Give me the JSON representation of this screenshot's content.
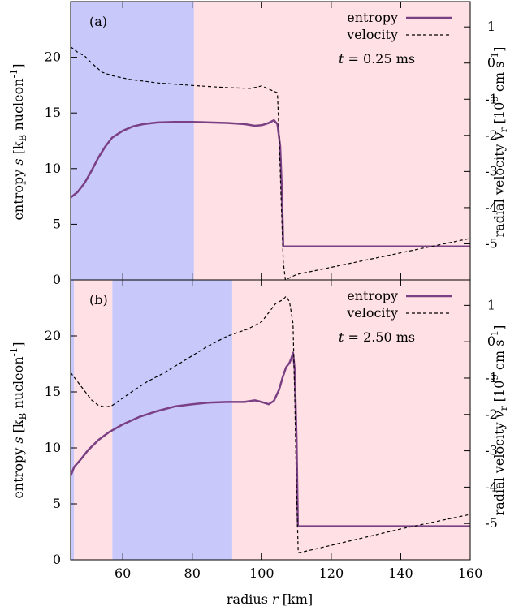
{
  "chart_data": [
    {
      "type": "line",
      "panel_label": "(a)",
      "time_label": "t = 0.25 ms",
      "time_label_parts": {
        "var": "t",
        "value": " = 0.25 ms"
      },
      "xlim": [
        45,
        160
      ],
      "ylim_left": [
        0,
        25
      ],
      "ylim_right": [
        -6,
        1.7
      ],
      "background_regions": [
        {
          "x0": 45,
          "x1": 80.5,
          "color": "#c8c8fa"
        },
        {
          "x0": 80.5,
          "x1": 160,
          "color": "#ffe0e4"
        }
      ],
      "series": [
        {
          "name": "entropy",
          "axis": "left",
          "color": "#7b3f84",
          "style": "solid",
          "points": [
            [
              45,
              7.4
            ],
            [
              47,
              7.9
            ],
            [
              49,
              8.7
            ],
            [
              51,
              9.8
            ],
            [
              53,
              11.0
            ],
            [
              55,
              12.0
            ],
            [
              57,
              12.8
            ],
            [
              60,
              13.4
            ],
            [
              63,
              13.8
            ],
            [
              66,
              14.0
            ],
            [
              70,
              14.15
            ],
            [
              75,
              14.2
            ],
            [
              80,
              14.2
            ],
            [
              85,
              14.15
            ],
            [
              90,
              14.1
            ],
            [
              95,
              14.0
            ],
            [
              98,
              13.85
            ],
            [
              100,
              13.9
            ],
            [
              102,
              14.1
            ],
            [
              103.5,
              14.35
            ],
            [
              104.5,
              14.0
            ],
            [
              105.3,
              12.0
            ],
            [
              105.8,
              8.0
            ],
            [
              106.2,
              3.0
            ],
            [
              110,
              3.0
            ],
            [
              130,
              3.0
            ],
            [
              160,
              3.0
            ]
          ]
        },
        {
          "name": "velocity",
          "axis": "right",
          "color": "#000000",
          "style": "dashed",
          "points": [
            [
              45,
              0.45
            ],
            [
              47,
              0.3
            ],
            [
              49,
              0.2
            ],
            [
              51,
              0.0
            ],
            [
              54,
              -0.25
            ],
            [
              57,
              -0.35
            ],
            [
              62,
              -0.45
            ],
            [
              70,
              -0.55
            ],
            [
              80,
              -0.62
            ],
            [
              90,
              -0.68
            ],
            [
              97,
              -0.7
            ],
            [
              100,
              -0.63
            ],
            [
              102,
              -0.72
            ],
            [
              104.5,
              -0.82
            ],
            [
              105,
              -2.0
            ],
            [
              105.5,
              -3.5
            ],
            [
              106.2,
              -5.5
            ],
            [
              106.8,
              -6.0
            ],
            [
              110,
              -5.85
            ],
            [
              130,
              -5.45
            ],
            [
              150,
              -5.05
            ],
            [
              160,
              -4.85
            ]
          ]
        }
      ]
    },
    {
      "type": "line",
      "panel_label": "(b)",
      "time_label": "t = 2.50 ms",
      "time_label_parts": {
        "var": "t",
        "value": " = 2.50 ms"
      },
      "xlim": [
        45,
        160
      ],
      "ylim_left": [
        0,
        25
      ],
      "ylim_right": [
        -6,
        1.7
      ],
      "background_regions": [
        {
          "x0": 45,
          "x1": 46,
          "color": "#c8c8fa"
        },
        {
          "x0": 46,
          "x1": 57,
          "color": "#ffe0e4"
        },
        {
          "x0": 57,
          "x1": 91.5,
          "color": "#c8c8fa"
        },
        {
          "x0": 91.5,
          "x1": 160,
          "color": "#ffe0e4"
        }
      ],
      "series": [
        {
          "name": "entropy",
          "axis": "left",
          "color": "#7b3f84",
          "style": "solid",
          "points": [
            [
              45,
              7.5
            ],
            [
              46,
              8.3
            ],
            [
              48,
              9.0
            ],
            [
              50,
              9.8
            ],
            [
              53,
              10.7
            ],
            [
              56,
              11.4
            ],
            [
              60,
              12.1
            ],
            [
              65,
              12.8
            ],
            [
              70,
              13.3
            ],
            [
              75,
              13.7
            ],
            [
              80,
              13.9
            ],
            [
              85,
              14.05
            ],
            [
              90,
              14.1
            ],
            [
              95,
              14.1
            ],
            [
              98,
              14.25
            ],
            [
              100,
              14.1
            ],
            [
              102,
              13.9
            ],
            [
              103.5,
              14.2
            ],
            [
              105,
              15.2
            ],
            [
              106,
              16.3
            ],
            [
              107,
              17.2
            ],
            [
              108,
              17.6
            ],
            [
              108.5,
              18.0
            ],
            [
              109,
              18.5
            ],
            [
              109.5,
              17.0
            ],
            [
              110,
              11.0
            ],
            [
              110.4,
              3.0
            ],
            [
              120,
              3.0
            ],
            [
              140,
              3.0
            ],
            [
              160,
              3.0
            ]
          ]
        },
        {
          "name": "velocity",
          "axis": "right",
          "color": "#000000",
          "style": "dashed",
          "points": [
            [
              45,
              -0.85
            ],
            [
              47,
              -1.1
            ],
            [
              49,
              -1.35
            ],
            [
              51,
              -1.6
            ],
            [
              53,
              -1.75
            ],
            [
              55,
              -1.8
            ],
            [
              57,
              -1.75
            ],
            [
              60,
              -1.55
            ],
            [
              63,
              -1.35
            ],
            [
              67,
              -1.1
            ],
            [
              72,
              -0.85
            ],
            [
              78,
              -0.5
            ],
            [
              84,
              -0.15
            ],
            [
              90,
              0.15
            ],
            [
              96,
              0.35
            ],
            [
              100,
              0.55
            ],
            [
              102,
              0.8
            ],
            [
              104,
              1.05
            ],
            [
              106,
              1.15
            ],
            [
              107,
              1.25
            ],
            [
              108,
              1.1
            ],
            [
              109,
              0.5
            ],
            [
              109.5,
              -1.5
            ],
            [
              110,
              -4.0
            ],
            [
              110.5,
              -5.8
            ],
            [
              111,
              -5.8
            ],
            [
              120,
              -5.6
            ],
            [
              140,
              -5.15
            ],
            [
              160,
              -4.75
            ]
          ]
        }
      ]
    }
  ],
  "axes": {
    "xlabel": "radius r [km]",
    "xlabel_parts": {
      "prefix": "radius ",
      "var": "r",
      "suffix": " [km]"
    },
    "x_ticks": [
      60,
      80,
      100,
      120,
      140,
      160
    ],
    "left_ticks": [
      0,
      5,
      10,
      15,
      20
    ],
    "right_ticks": [
      -5,
      -4,
      -3,
      -2,
      -1,
      0,
      1
    ],
    "ylabel_left": "entropy s [kB nucleon-1]",
    "ylabel_left_parts": {
      "prefix": "entropy ",
      "var": "s",
      "mid": " [k",
      "sub": "B",
      "mid2": " nucleon",
      "sup": "-1",
      "suffix": "]"
    },
    "ylabel_right": "radial velocity vr [10^9 cm s-1]",
    "ylabel_right_parts": {
      "prefix": "radial velocity ",
      "var": "v",
      "sub": "r",
      "mid": " [10",
      "sup": "9",
      "mid2": " cm s",
      "sup2": "-1",
      "suffix": "]"
    }
  },
  "legend": {
    "placement": "top-right",
    "entries": [
      {
        "label": "entropy",
        "color": "#7b3f84",
        "style": "solid"
      },
      {
        "label": "velocity",
        "color": "#000000",
        "style": "dashed"
      }
    ]
  }
}
